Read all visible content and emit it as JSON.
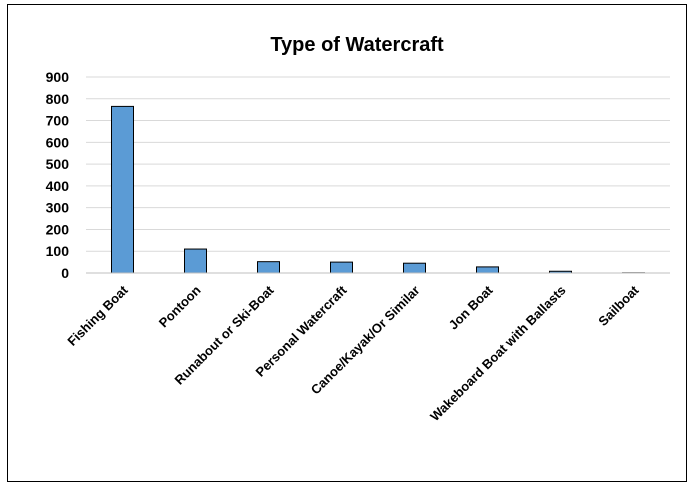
{
  "chart_data": {
    "type": "bar",
    "title": "Type of Watercraft",
    "xlabel": "",
    "ylabel": "",
    "categories": [
      "Fishing Boat",
      "Pontoon",
      "Runabout or Ski-Boat",
      "Personal Watercraft",
      "Canoe/Kayak/Or Similar",
      "Jon Boat",
      "Wakeboard Boat with Ballasts",
      "Sailboat"
    ],
    "values": [
      765,
      110,
      52,
      50,
      45,
      28,
      8,
      1
    ],
    "ylim": [
      0,
      900
    ],
    "yticks": [
      "0",
      "100",
      "200",
      "300",
      "400",
      "500",
      "600",
      "700",
      "800",
      "900"
    ],
    "grid": true,
    "legend": "none",
    "bar_color": "#5b9bd5"
  }
}
